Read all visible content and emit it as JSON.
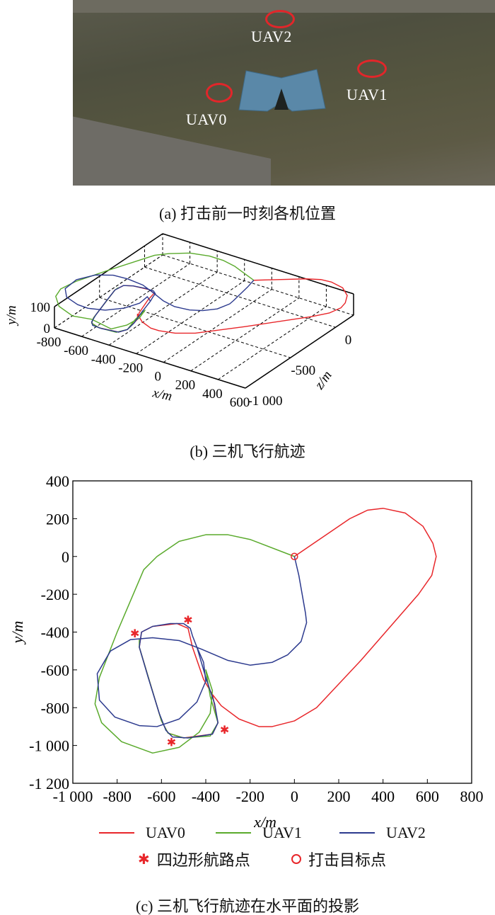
{
  "photo": {
    "labels": {
      "uav0": "UAV0",
      "uav1": "UAV1",
      "uav2": "UAV2"
    },
    "caption": "(a) 打击前一时刻各机位置"
  },
  "colors": {
    "uav0": "#e8262a",
    "uav1": "#5aaa2c",
    "uav2": "#2c3a8e",
    "marker": "#e8262a"
  },
  "chart_data": [
    {
      "type": "line",
      "title": "",
      "caption": "(b) 三机飞行航迹",
      "xlabel": "x/m",
      "ylabel": "y/m",
      "zlabel": "z/m",
      "xlim": [
        -800,
        600
      ],
      "ylim": [
        0,
        100
      ],
      "zlim": [
        -1000,
        200
      ],
      "xticks": [
        "-800",
        "-600",
        "-400",
        "-200",
        "0",
        "200",
        "400",
        "600"
      ],
      "yticks": [
        "0",
        "100"
      ],
      "zticks": [
        "-1 000",
        "-500",
        "0"
      ],
      "grid": true,
      "note": "3D view; series reuse horizontal trajectories at altitude ≈100 m"
    },
    {
      "type": "line",
      "title": "",
      "caption": "(c) 三机飞行航迹在水平面的投影",
      "xlabel": "x/m",
      "ylabel": "y/m",
      "xlim": [
        -1000,
        800
      ],
      "ylim": [
        -1200,
        400
      ],
      "xticks": [
        "-1 000",
        "-800",
        "-600",
        "-400",
        "-200",
        "0",
        "200",
        "400",
        "600",
        "800"
      ],
      "yticks": [
        "-1 200",
        "-1 000",
        "-800",
        "-600",
        "-400",
        "-200",
        "0",
        "200",
        "400"
      ],
      "grid": false,
      "legend_placement": "bottom",
      "series": [
        {
          "name": "UAV0",
          "points": [
            [
              0,
              0
            ],
            [
              100,
              80
            ],
            [
              250,
              200
            ],
            [
              330,
              245
            ],
            [
              400,
              255
            ],
            [
              500,
              230
            ],
            [
              580,
              160
            ],
            [
              625,
              70
            ],
            [
              640,
              0
            ],
            [
              620,
              -100
            ],
            [
              560,
              -200
            ],
            [
              300,
              -550
            ],
            [
              100,
              -800
            ],
            [
              0,
              -870
            ],
            [
              -100,
              -900
            ],
            [
              -160,
              -900
            ],
            [
              -250,
              -860
            ],
            [
              -330,
              -790
            ],
            [
              -370,
              -730
            ],
            [
              -345,
              -880
            ],
            [
              -370,
              -940
            ],
            [
              -500,
              -960
            ],
            [
              -570,
              -935
            ],
            [
              -600,
              -870
            ],
            [
              -700,
              -480
            ],
            [
              -690,
              -400
            ],
            [
              -640,
              -370
            ],
            [
              -530,
              -355
            ],
            [
              -480,
              -380
            ],
            [
              -460,
              -480
            ],
            [
              -410,
              -650
            ],
            [
              -370,
              -730
            ]
          ]
        },
        {
          "name": "UAV1",
          "points": [
            [
              0,
              0
            ],
            [
              -200,
              90
            ],
            [
              -300,
              115
            ],
            [
              -400,
              115
            ],
            [
              -520,
              80
            ],
            [
              -620,
              0
            ],
            [
              -680,
              -70
            ],
            [
              -720,
              -180
            ],
            [
              -800,
              -400
            ],
            [
              -880,
              -640
            ],
            [
              -900,
              -780
            ],
            [
              -870,
              -880
            ],
            [
              -780,
              -980
            ],
            [
              -640,
              -1040
            ],
            [
              -520,
              -1010
            ],
            [
              -430,
              -930
            ],
            [
              -380,
              -830
            ],
            [
              -370,
              -710
            ],
            [
              -400,
              -600
            ],
            [
              -380,
              -740
            ],
            [
              -345,
              -880
            ],
            [
              -380,
              -950
            ],
            [
              -500,
              -960
            ],
            [
              -570,
              -935
            ],
            [
              -600,
              -870
            ],
            [
              -700,
              -480
            ],
            [
              -700,
              -440
            ]
          ]
        },
        {
          "name": "UAV2",
          "points": [
            [
              0,
              0
            ],
            [
              20,
              -100
            ],
            [
              50,
              -300
            ],
            [
              55,
              -350
            ],
            [
              30,
              -450
            ],
            [
              -30,
              -520
            ],
            [
              -100,
              -560
            ],
            [
              -200,
              -575
            ],
            [
              -300,
              -550
            ],
            [
              -420,
              -490
            ],
            [
              -520,
              -445
            ],
            [
              -640,
              -430
            ],
            [
              -740,
              -440
            ],
            [
              -830,
              -500
            ],
            [
              -890,
              -620
            ],
            [
              -880,
              -760
            ],
            [
              -810,
              -850
            ],
            [
              -700,
              -895
            ],
            [
              -620,
              -900
            ],
            [
              -520,
              -860
            ],
            [
              -440,
              -770
            ],
            [
              -400,
              -660
            ],
            [
              -410,
              -560
            ],
            [
              -440,
              -480
            ],
            [
              -460,
              -420
            ],
            [
              -470,
              -380
            ],
            [
              -500,
              -355
            ],
            [
              -560,
              -355
            ],
            [
              -640,
              -370
            ],
            [
              -690,
              -400
            ],
            [
              -700,
              -480
            ],
            [
              -660,
              -640
            ],
            [
              -610,
              -830
            ],
            [
              -580,
              -920
            ],
            [
              -550,
              -955
            ],
            [
              -480,
              -960
            ],
            [
              -370,
              -940
            ],
            [
              -345,
              -880
            ],
            [
              -360,
              -780
            ],
            [
              -400,
              -640
            ],
            [
              -440,
              -480
            ]
          ]
        }
      ],
      "waypoints": {
        "name": "四边形航路点",
        "points": [
          [
            -720,
            -405
          ],
          [
            -480,
            -335
          ],
          [
            -555,
            -980
          ],
          [
            -315,
            -915
          ]
        ]
      },
      "target": {
        "name": "打击目标点",
        "points": [
          [
            0,
            0
          ]
        ]
      }
    }
  ]
}
